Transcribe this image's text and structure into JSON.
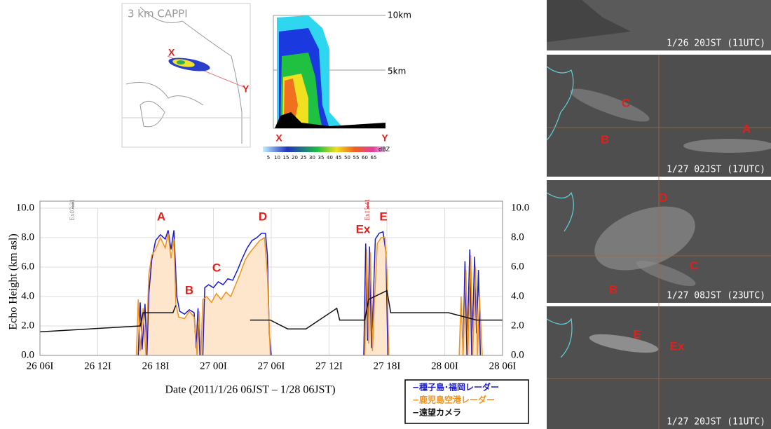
{
  "chart_data": {
    "type": "line",
    "xlabel": "Date (2011/1/26 06JST – 1/28 06JST)",
    "ylabel": "Echo Height (km asl)",
    "xlim": [
      0,
      48
    ],
    "xticks": [
      {
        "value": 0,
        "label": "26 06I"
      },
      {
        "value": 6,
        "label": "26 12I"
      },
      {
        "value": 12,
        "label": "26 18I"
      },
      {
        "value": 18,
        "label": "27 00I"
      },
      {
        "value": 24,
        "label": "27 06I"
      },
      {
        "value": 30,
        "label": "27 12I"
      },
      {
        "value": 36,
        "label": "27 18I"
      },
      {
        "value": 42,
        "label": "28 00I"
      },
      {
        "value": 48,
        "label": "28 06I"
      }
    ],
    "ylim": [
      0,
      10
    ],
    "yticks": [
      {
        "value": 0,
        "label": "0.0"
      },
      {
        "value": 2,
        "label": "2.0"
      },
      {
        "value": 4,
        "label": "4.0"
      },
      {
        "value": 6,
        "label": "6.0"
      },
      {
        "value": 8,
        "label": "8.0"
      },
      {
        "value": 10,
        "label": "10.0"
      }
    ],
    "grid": true,
    "series": [
      {
        "name": "−種子島･福岡レーダー",
        "color": "#1a1acc",
        "x": [
          10.2,
          10.4,
          10.6,
          10.9,
          11.1,
          11.3,
          11.6,
          12,
          12.5,
          13,
          13.3,
          13.6,
          13.9,
          14.2,
          14.5,
          15,
          15.5,
          16,
          16.2,
          16.4,
          16.6,
          16.7,
          16.9,
          17.1,
          17.5,
          18,
          18.5,
          19,
          19.5,
          20,
          20.5,
          21,
          21.5,
          22,
          22.5,
          23,
          23.4,
          23.6,
          23.8,
          24,
          24.1,
          33.6,
          33.8,
          34,
          34.2,
          34.4,
          34.6,
          34.8,
          35.2,
          35.6,
          35.9,
          36.1,
          36.2,
          43.9,
          44.1,
          44.3,
          44.6,
          44.8,
          45.1,
          45.3,
          45.5,
          45.7
        ],
        "values": [
          0,
          3.6,
          0.4,
          3.5,
          0,
          4.2,
          6.5,
          7.8,
          8.2,
          7.9,
          8.5,
          7.2,
          8.5,
          4.0,
          3.0,
          2.8,
          3.1,
          2.9,
          0.5,
          3.2,
          0,
          null,
          0,
          4.6,
          4.8,
          4.6,
          5.0,
          4.8,
          5.2,
          5.1,
          5.8,
          6.6,
          7.3,
          7.8,
          8.0,
          8.3,
          8.3,
          6.8,
          1.5,
          0,
          null,
          0,
          7.6,
          1.0,
          7.4,
          0.5,
          4.0,
          7.9,
          8.3,
          8.4,
          7.0,
          0,
          null,
          0,
          6.4,
          0,
          7.2,
          0,
          6.7,
          1.5,
          5.8,
          0
        ]
      },
      {
        "name": "−鹿児島空港レーダー",
        "color": "#f0921e",
        "fill": "#fde6cc",
        "x": [
          10.0,
          10.2,
          10.4,
          10.7,
          11.0,
          11.3,
          11.6,
          12,
          12.5,
          13,
          13.3,
          13.6,
          13.9,
          14.1,
          14.4,
          15,
          15.5,
          16,
          16.3,
          16.5,
          16.7,
          16.9,
          17.3,
          17.8,
          18.3,
          18.8,
          19.3,
          19.8,
          20.3,
          20.8,
          21.3,
          21.8,
          22.3,
          22.8,
          23.3,
          23.6,
          23.9,
          24.0,
          33.7,
          33.9,
          34.1,
          34.3,
          34.5,
          34.7,
          35,
          35.4,
          35.8,
          36,
          36.2,
          36.3,
          43.5,
          43.7,
          43.9,
          44.2,
          44.4,
          44.7,
          44.9,
          45.2,
          45.4,
          45.6,
          45.9
        ],
        "values": [
          0,
          3.8,
          0.3,
          3.2,
          0,
          5.5,
          6.8,
          7.2,
          8.0,
          7.3,
          8.3,
          6.6,
          7.9,
          3.5,
          2.6,
          2.5,
          3.0,
          2.6,
          0,
          3.0,
          0,
          3.8,
          4.0,
          3.6,
          4.2,
          3.8,
          4.3,
          4.0,
          4.8,
          5.6,
          6.5,
          7.0,
          7.4,
          7.8,
          8.0,
          5.5,
          0,
          null,
          0,
          7.2,
          0.8,
          7.0,
          0.3,
          3.5,
          7.6,
          8.0,
          8.0,
          5.8,
          0,
          null,
          0,
          4.0,
          0,
          5.8,
          0,
          6.8,
          0,
          6.0,
          0,
          4.0,
          0
        ]
      },
      {
        "name": "−遠望カメラ",
        "color": "#111111",
        "x": [
          0,
          10.4,
          10.7,
          13.8,
          14.1,
          14.2,
          21.8,
          23.9,
          25.7,
          27.6,
          30.8,
          31.1,
          33.7,
          34.1,
          36.0,
          36.4,
          42.4,
          45.3,
          48
        ],
        "values": [
          1.6,
          2.0,
          2.9,
          2.9,
          3.4,
          null,
          2.4,
          2.4,
          1.8,
          1.8,
          3.2,
          2.4,
          2.4,
          3.8,
          4.4,
          2.9,
          2.9,
          2.4,
          2.4
        ]
      }
    ],
    "letters": [
      "A",
      "B",
      "C",
      "D",
      "Ex",
      "E"
    ],
    "events": [
      "Ex07:31",
      "Ex15:41"
    ]
  },
  "map": {
    "title": "3 km CAPPI",
    "start": "X",
    "end": "Y"
  },
  "cross_section": {
    "heights": [
      "10km",
      "5km"
    ],
    "start": "X",
    "end": "Y",
    "colorbar_unit": "dBZ",
    "colorbar_ticks": [
      5,
      10,
      15,
      20,
      25,
      30,
      35,
      40,
      45,
      50,
      55,
      60,
      65
    ]
  },
  "satellite": [
    {
      "time": "1/26 20JST (11UTC)",
      "labels": []
    },
    {
      "time": "1/27 02JST (17UTC)",
      "labels": [
        "C",
        "B",
        "A"
      ]
    },
    {
      "time": "1/27 08JST (23UTC)",
      "labels": [
        "D",
        "C",
        "B"
      ]
    },
    {
      "time": "1/27 20JST (11UTC)",
      "labels": [
        "E",
        "Ex"
      ]
    }
  ]
}
